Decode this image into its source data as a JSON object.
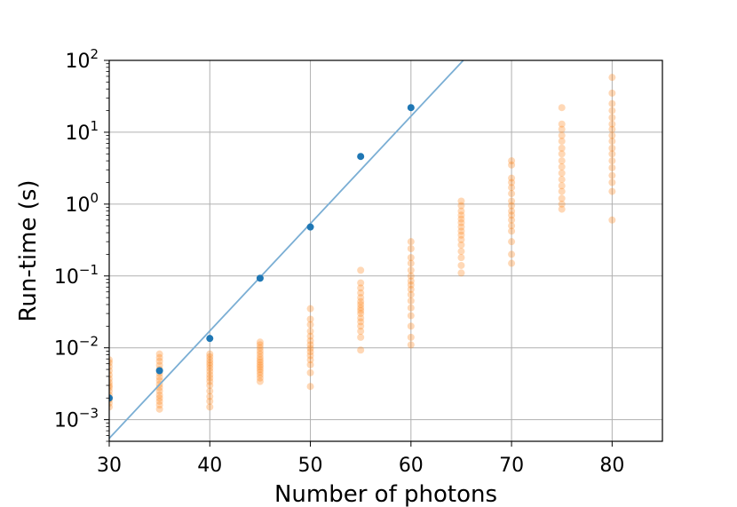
{
  "chart_data": {
    "type": "scatter",
    "xlabel": "Number of photons",
    "ylabel": "Run-time (s)",
    "xlim": [
      30,
      85
    ],
    "ylim": [
      0.0005,
      100
    ],
    "yscale": "log",
    "grid": true,
    "x_ticks": [
      30,
      40,
      50,
      60,
      70,
      80
    ],
    "x_tick_labels": [
      "30",
      "40",
      "50",
      "60",
      "70",
      "80"
    ],
    "y_ticks": [
      0.001,
      0.01,
      0.1,
      1,
      10,
      100
    ],
    "y_tick_labels": [
      {
        "base": "10",
        "exp": "−3"
      },
      {
        "base": "10",
        "exp": "−2"
      },
      {
        "base": "10",
        "exp": "−1"
      },
      {
        "base": "10",
        "exp": "0"
      },
      {
        "base": "10",
        "exp": "1"
      },
      {
        "base": "10",
        "exp": "2"
      }
    ],
    "colors": {
      "series_a": "#1f77b4",
      "series_b": "#ff7f0e",
      "fit_line": "#7aaed4",
      "grid": "#b0b0b0"
    },
    "series": [
      {
        "kind": "points",
        "color": "#1f77b4",
        "x": [
          30,
          35,
          40,
          45,
          50,
          55,
          60
        ],
        "y": [
          0.002,
          0.0048,
          0.0135,
          0.093,
          0.48,
          4.6,
          22
        ]
      },
      {
        "kind": "line",
        "color": "#7aaed4",
        "x": [
          30,
          65.2
        ],
        "y": [
          0.00055,
          100
        ]
      },
      {
        "kind": "points",
        "color": "#ff7f0e",
        "opacity": 0.3,
        "groups": [
          {
            "x": 30,
            "y": [
              0.0015,
              0.0017,
              0.0019,
              0.002,
              0.0022,
              0.0025,
              0.0028,
              0.003,
              0.0033,
              0.0037,
              0.0042,
              0.0048,
              0.0055,
              0.0062,
              0.0068
            ]
          },
          {
            "x": 35,
            "y": [
              0.0014,
              0.0016,
              0.0018,
              0.002,
              0.0022,
              0.0025,
              0.0028,
              0.0031,
              0.0035,
              0.0039,
              0.0044,
              0.005,
              0.0057,
              0.0065,
              0.0073,
              0.0082
            ]
          },
          {
            "x": 40,
            "y": [
              0.0015,
              0.0018,
              0.0021,
              0.0025,
              0.003,
              0.0034,
              0.0038,
              0.0042,
              0.0047,
              0.0052,
              0.0057,
              0.0062,
              0.0068,
              0.0075,
              0.0082
            ]
          },
          {
            "x": 45,
            "y": [
              0.0034,
              0.0038,
              0.0042,
              0.0046,
              0.005,
              0.0054,
              0.0058,
              0.0063,
              0.0068,
              0.0074,
              0.0082,
              0.009,
              0.01,
              0.011,
              0.012
            ]
          },
          {
            "x": 50,
            "y": [
              0.0029,
              0.0045,
              0.0058,
              0.0068,
              0.0078,
              0.0088,
              0.0098,
              0.011,
              0.0125,
              0.0145,
              0.017,
              0.021,
              0.025,
              0.035
            ]
          },
          {
            "x": 55,
            "y": [
              0.0093,
              0.014,
              0.017,
              0.02,
              0.023,
              0.026,
              0.03,
              0.033,
              0.036,
              0.04,
              0.044,
              0.05,
              0.058,
              0.068,
              0.08,
              0.12
            ]
          },
          {
            "x": 60,
            "y": [
              0.011,
              0.014,
              0.02,
              0.028,
              0.036,
              0.045,
              0.055,
              0.065,
              0.075,
              0.085,
              0.1,
              0.12,
              0.15,
              0.18,
              0.24,
              0.3
            ]
          },
          {
            "x": 65,
            "y": [
              0.11,
              0.14,
              0.18,
              0.22,
              0.27,
              0.32,
              0.37,
              0.42,
              0.48,
              0.55,
              0.62,
              0.7,
              0.8,
              0.95,
              1.1
            ]
          },
          {
            "x": 70,
            "y": [
              0.15,
              0.2,
              0.3,
              0.42,
              0.5,
              0.6,
              0.7,
              0.8,
              0.95,
              1.1,
              1.4,
              1.7,
              2.0,
              2.3,
              3.5,
              4.0
            ]
          },
          {
            "x": 75,
            "y": [
              0.85,
              1.0,
              1.2,
              1.5,
              1.8,
              2.2,
              2.7,
              3.3,
              4.0,
              5.0,
              6.0,
              7.5,
              9.0,
              11,
              13,
              22
            ]
          },
          {
            "x": 80,
            "y": [
              0.6,
              1.5,
              2.0,
              2.5,
              3.2,
              4.0,
              5.0,
              6.0,
              7.5,
              9.0,
              11,
              13,
              16,
              20,
              25,
              35,
              58
            ]
          }
        ]
      }
    ]
  }
}
